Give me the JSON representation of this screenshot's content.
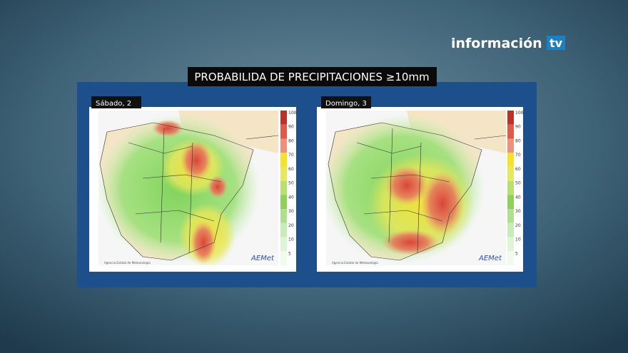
{
  "brand": {
    "name": "información",
    "suffix": "tv"
  },
  "title": "PROBABILIDA DE PRECIPITACIONES ≥10mm",
  "maps": [
    {
      "label": "Sábado, 2",
      "scale": [
        100,
        90,
        80,
        70,
        60,
        50,
        40,
        30,
        20,
        10,
        5
      ],
      "logo": "AEMet",
      "credit": "Agencia Estatal de Meteorología"
    },
    {
      "label": "Domingo, 3",
      "scale": [
        100,
        90,
        80,
        70,
        60,
        50,
        40,
        30,
        20,
        10,
        5
      ],
      "logo": "AEMet",
      "credit": "Agencia Estatal de Meteorología"
    }
  ]
}
